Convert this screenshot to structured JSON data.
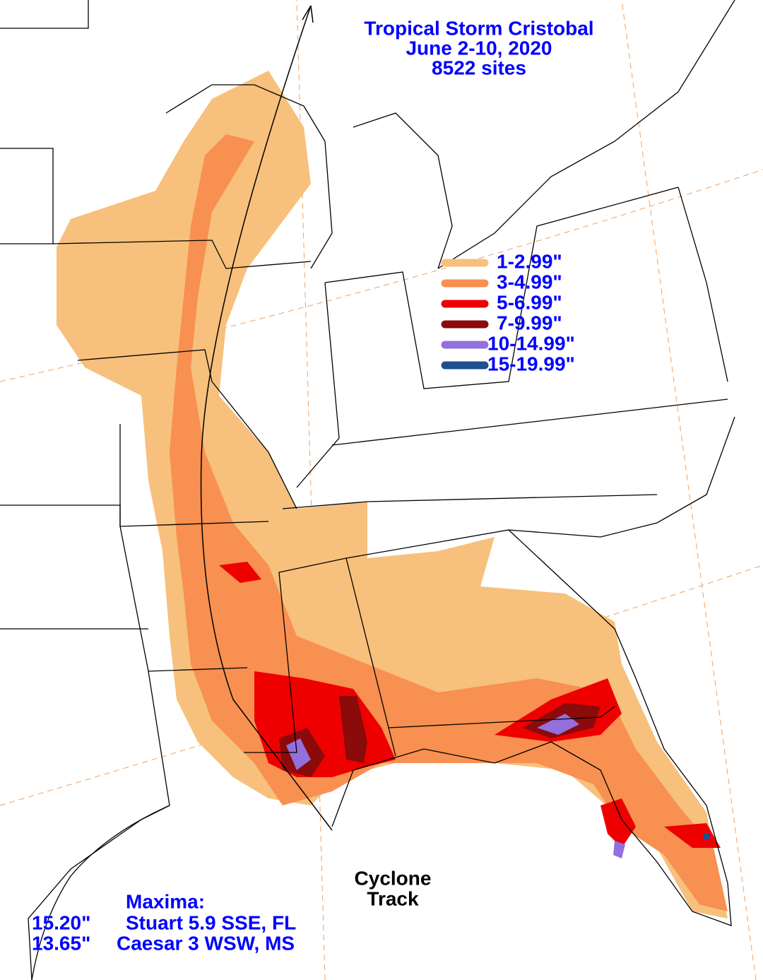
{
  "title": {
    "lines": [
      "Tropical Storm Cristobal",
      "June 2-10, 2020",
      "8522 sites"
    ]
  },
  "legend": {
    "items": [
      {
        "label": "1-2.99\"",
        "color": "#f7c07c"
      },
      {
        "label": "3-4.99\"",
        "color": "#f79050"
      },
      {
        "label": "5-6.99\"",
        "color": "#ee0000"
      },
      {
        "label": "7-9.99\"",
        "color": "#8b0a0a"
      },
      {
        "label": "10-14.99\"",
        "color": "#9370db"
      },
      {
        "label": "15-19.99\"",
        "color": "#1f4f8f"
      }
    ]
  },
  "track_label": {
    "lines": [
      "Cyclone",
      "Track"
    ]
  },
  "maxima": {
    "heading": "Maxima:",
    "rows": [
      {
        "amount": "15.20\"",
        "location": "Stuart 5.9 SSE, FL"
      },
      {
        "amount": "13.65\"",
        "location": "Caesar 3 WSW, MS"
      }
    ]
  }
}
